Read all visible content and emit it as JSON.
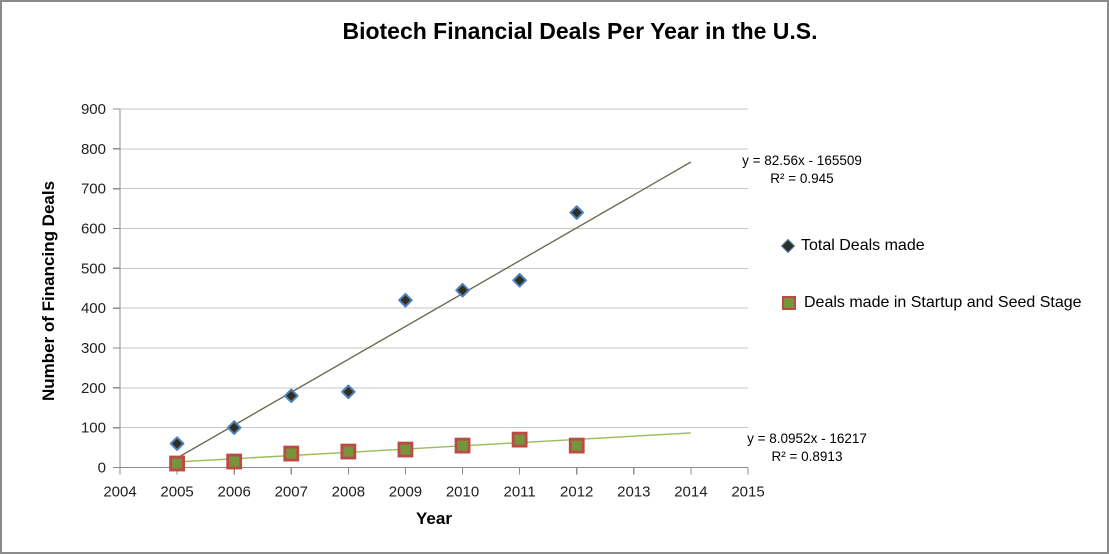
{
  "window": {
    "background": "#ffffff",
    "border_color": "#8a8a8a"
  },
  "chart_data": {
    "type": "scatter",
    "title": "Biotech Financial Deals Per Year in the U.S.",
    "xlabel": "Year",
    "ylabel": "Number of Financing Deals",
    "xlim": [
      2004,
      2015
    ],
    "ylim": [
      0,
      900
    ],
    "x_ticks": [
      2004,
      2005,
      2006,
      2007,
      2008,
      2009,
      2010,
      2011,
      2012,
      2013,
      2014,
      2015
    ],
    "y_ticks": [
      0,
      100,
      200,
      300,
      400,
      500,
      600,
      700,
      800,
      900
    ],
    "grid": "horizontal-only",
    "legend_position": "right",
    "axis_color": "#8e8e8e",
    "gridline_color": "#c7c7c7",
    "tick_label_color": "#1f1f1f",
    "x": [
      2005,
      2006,
      2007,
      2008,
      2009,
      2010,
      2011,
      2012
    ],
    "series": [
      {
        "name": "Total Deals made",
        "marker": "diamond",
        "marker_fill": "#31301f",
        "marker_stroke": "#4f81bd",
        "values": [
          60,
          100,
          180,
          190,
          420,
          445,
          470,
          640
        ],
        "trendline": {
          "slope": 82.56,
          "intercept": -165509,
          "x_start": 2005,
          "x_end": 2014,
          "color": "#6e6c55",
          "equation": "y = 82.56x - 165509",
          "r_squared": "R² = 0.945"
        }
      },
      {
        "name": "Deals made in Startup and Seed Stage",
        "marker": "square",
        "marker_fill": "#77933c",
        "marker_stroke": "#bd4b45",
        "values": [
          10,
          15,
          35,
          40,
          45,
          55,
          70,
          55
        ],
        "trendline": {
          "slope": 8.0952,
          "intercept": -16217,
          "x_start": 2005,
          "x_end": 2014,
          "color": "#9bbb59",
          "equation": "y = 8.0952x - 16217",
          "r_squared": "R² = 0.8913"
        }
      }
    ]
  }
}
